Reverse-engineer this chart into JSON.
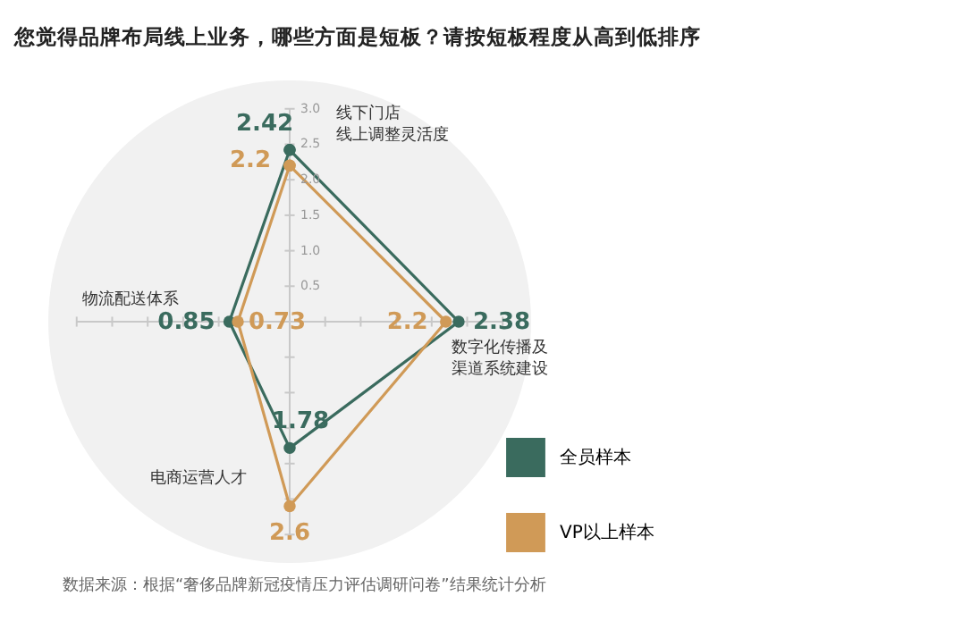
{
  "chart_data": {
    "type": "radar",
    "title": "您觉得品牌布局线上业务，哪些方面是短板？请按短板程度从高到低排序",
    "categories": [
      "线下门店线上调整灵活度",
      "数字化传播及渠道系统建设",
      "电商运营人才",
      "物流配送体系"
    ],
    "series": [
      {
        "name": "全员样本",
        "color": "#3a6b5e",
        "values": [
          2.42,
          2.38,
          1.78,
          0.85
        ]
      },
      {
        "name": "VP以上样本",
        "color": "#d09a57",
        "values": [
          2.2,
          2.2,
          2.6,
          0.73
        ]
      }
    ],
    "ylim": [
      0,
      3.4
    ],
    "yticks": [
      0.5,
      {
        "value": 1,
        "label": "1.0"
      },
      1.5,
      {
        "value": 2,
        "label": "2.0"
      },
      2.5,
      {
        "value": 3,
        "label": "3.0"
      }
    ],
    "data_labels": true,
    "marker": "circle",
    "legend": "bottom right",
    "annotations": [
      "数据来源：根据“奢侈品牌新冠疫情压力评估调研问卷”结果统计分析"
    ]
  }
}
